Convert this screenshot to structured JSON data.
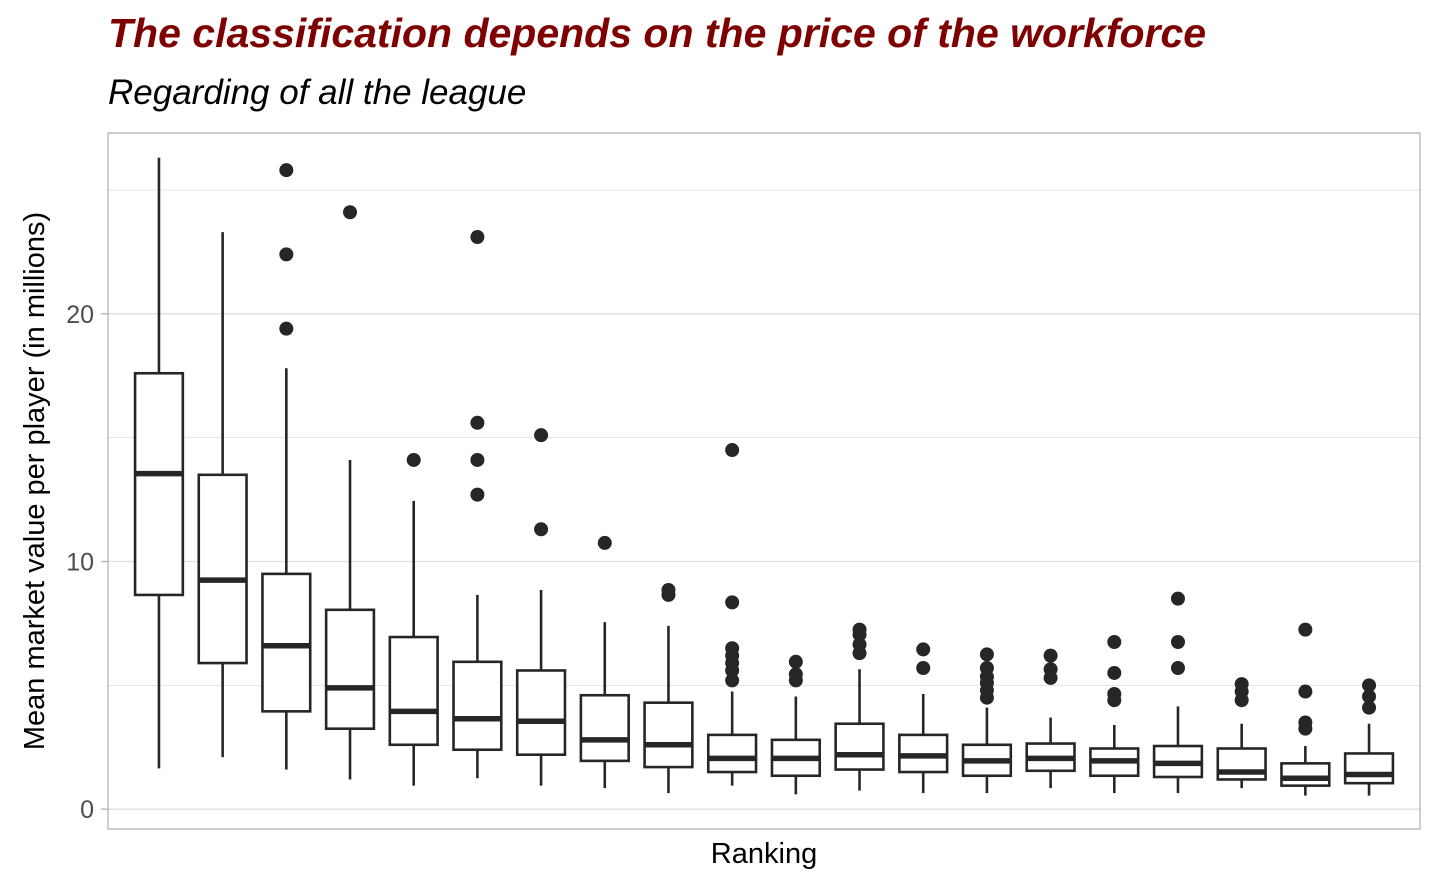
{
  "title": "The classification depends on the price of the workforce",
  "subtitle": "Regarding of all the league",
  "chart_data": {
    "type": "boxplot",
    "xlabel": "Ranking",
    "ylabel": "Mean market value per player (in millions)",
    "yticks": [
      0,
      10,
      20
    ],
    "ylim": [
      -0.8,
      27.3
    ],
    "grid": true,
    "colors": {
      "title": "#7f0000",
      "box": "#262626",
      "grid": "#dedede",
      "panel_border": "#b3b3b3",
      "tick_label": "#4d4d4d"
    },
    "boxes": [
      {
        "low": 1.65,
        "q1": 8.65,
        "median": 13.55,
        "q3": 17.6,
        "high": 26.3,
        "outliers": []
      },
      {
        "low": 2.1,
        "q1": 5.9,
        "median": 9.25,
        "q3": 13.5,
        "high": 23.3,
        "outliers": []
      },
      {
        "low": 1.6,
        "q1": 3.95,
        "median": 6.6,
        "q3": 9.5,
        "high": 17.8,
        "outliers": [
          19.4,
          22.4,
          25.8
        ]
      },
      {
        "low": 1.2,
        "q1": 3.25,
        "median": 4.9,
        "q3": 8.05,
        "high": 14.1,
        "outliers": [
          24.1
        ]
      },
      {
        "low": 0.95,
        "q1": 2.6,
        "median": 3.95,
        "q3": 6.95,
        "high": 12.45,
        "outliers": [
          14.1
        ]
      },
      {
        "low": 1.25,
        "q1": 2.4,
        "median": 3.65,
        "q3": 5.95,
        "high": 8.65,
        "outliers": [
          12.7,
          14.1,
          15.6,
          23.1
        ]
      },
      {
        "low": 0.95,
        "q1": 2.2,
        "median": 3.55,
        "q3": 5.6,
        "high": 8.85,
        "outliers": [
          11.3,
          15.1
        ]
      },
      {
        "low": 0.85,
        "q1": 1.95,
        "median": 2.8,
        "q3": 4.6,
        "high": 7.55,
        "outliers": [
          10.75
        ]
      },
      {
        "low": 0.65,
        "q1": 1.7,
        "median": 2.6,
        "q3": 4.3,
        "high": 7.4,
        "outliers": [
          8.65,
          8.85
        ]
      },
      {
        "low": 0.95,
        "q1": 1.5,
        "median": 2.05,
        "q3": 3.0,
        "high": 4.75,
        "outliers": [
          5.2,
          5.6,
          5.9,
          6.2,
          6.5,
          8.35,
          14.5
        ]
      },
      {
        "low": 0.6,
        "q1": 1.35,
        "median": 2.05,
        "q3": 2.8,
        "high": 4.55,
        "outliers": [
          5.2,
          5.45,
          5.95
        ]
      },
      {
        "low": 0.75,
        "q1": 1.6,
        "median": 2.2,
        "q3": 3.45,
        "high": 5.65,
        "outliers": [
          6.3,
          6.65,
          7.05,
          7.25
        ]
      },
      {
        "low": 0.65,
        "q1": 1.5,
        "median": 2.15,
        "q3": 3.0,
        "high": 4.65,
        "outliers": [
          5.7,
          6.45
        ]
      },
      {
        "low": 0.65,
        "q1": 1.35,
        "median": 1.95,
        "q3": 2.6,
        "high": 4.1,
        "outliers": [
          4.5,
          4.8,
          5.1,
          5.35,
          5.7,
          6.25
        ]
      },
      {
        "low": 0.85,
        "q1": 1.55,
        "median": 2.05,
        "q3": 2.65,
        "high": 3.7,
        "outliers": [
          5.3,
          5.65,
          6.2
        ]
      },
      {
        "low": 0.65,
        "q1": 1.35,
        "median": 1.95,
        "q3": 2.45,
        "high": 3.4,
        "outliers": [
          4.4,
          4.65,
          5.5,
          6.75
        ]
      },
      {
        "low": 0.65,
        "q1": 1.3,
        "median": 1.85,
        "q3": 2.55,
        "high": 4.15,
        "outliers": [
          5.7,
          6.75,
          8.5
        ]
      },
      {
        "low": 0.85,
        "q1": 1.2,
        "median": 1.5,
        "q3": 2.45,
        "high": 3.45,
        "outliers": [
          4.4,
          4.75,
          5.05
        ]
      },
      {
        "low": 0.55,
        "q1": 0.95,
        "median": 1.25,
        "q3": 1.85,
        "high": 2.55,
        "outliers": [
          3.25,
          3.5,
          4.75,
          7.25
        ]
      },
      {
        "low": 0.55,
        "q1": 1.05,
        "median": 1.4,
        "q3": 2.25,
        "high": 3.45,
        "outliers": [
          4.1,
          4.55,
          5.0
        ]
      }
    ]
  }
}
